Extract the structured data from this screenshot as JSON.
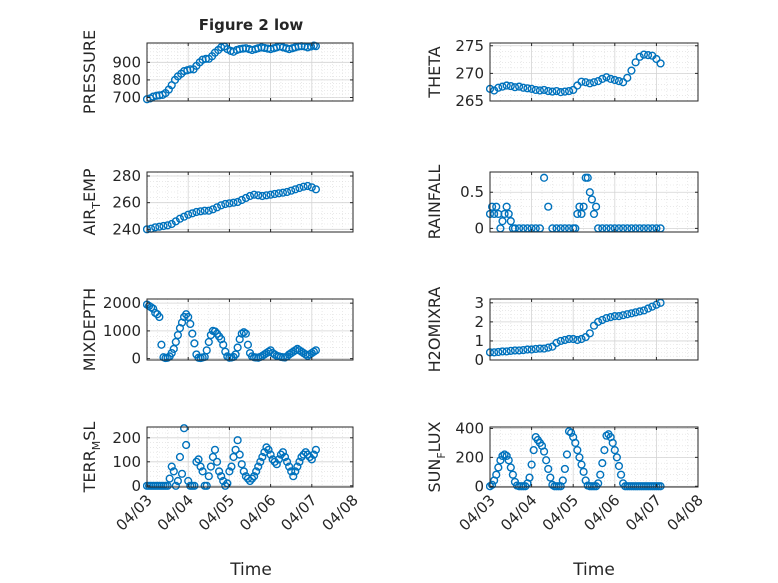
{
  "figure": {
    "title": "Figure 2 low",
    "xlabel": "Time",
    "marker_color": "#0072BD"
  },
  "chart_data": [
    {
      "type": "scatter",
      "ylabel": "PRESSURE",
      "yticks": [
        700,
        800,
        900
      ],
      "ytick_labels": [
        "700",
        "800",
        "900"
      ],
      "ylim": [
        680,
        1010
      ],
      "xlim": [
        "04/03",
        "04/08"
      ],
      "x": [
        0,
        0.08,
        0.15,
        0.23,
        0.3,
        0.38,
        0.45,
        0.53,
        0.6,
        0.68,
        0.75,
        0.83,
        0.9,
        0.98,
        1.05,
        1.13,
        1.2,
        1.28,
        1.35,
        1.43,
        1.5,
        1.58,
        1.65,
        1.73,
        1.8,
        1.88,
        1.95,
        2.03,
        2.1,
        2.18,
        2.25,
        2.33,
        2.4,
        2.48,
        2.55,
        2.63,
        2.7,
        2.78,
        2.85,
        2.93,
        3.0,
        3.08,
        3.15,
        3.23,
        3.3,
        3.38,
        3.45,
        3.53,
        3.6,
        3.68,
        3.75,
        3.83,
        3.9,
        3.98,
        4.05,
        4.1
      ],
      "y": [
        690,
        695,
        705,
        710,
        712,
        715,
        725,
        745,
        770,
        800,
        820,
        835,
        850,
        855,
        860,
        860,
        880,
        900,
        915,
        920,
        920,
        935,
        955,
        970,
        985,
        990,
        975,
        965,
        960,
        970,
        975,
        978,
        980,
        975,
        970,
        975,
        980,
        985,
        982,
        978,
        975,
        980,
        985,
        990,
        985,
        980,
        975,
        980,
        985,
        990,
        992,
        990,
        985,
        990,
        995,
        992
      ],
      "series": [
        {
          "name": "",
          "values": []
        }
      ]
    },
    {
      "type": "scatter",
      "ylabel": "THETA",
      "yticks": [
        265,
        270,
        275
      ],
      "ytick_labels": [
        "265",
        "270",
        "275"
      ],
      "ylim": [
        265,
        275.5
      ],
      "xlim": [
        "04/03",
        "04/08"
      ],
      "x": [
        0,
        0.1,
        0.2,
        0.3,
        0.4,
        0.5,
        0.6,
        0.7,
        0.8,
        0.9,
        1.0,
        1.1,
        1.2,
        1.3,
        1.4,
        1.5,
        1.6,
        1.7,
        1.8,
        1.9,
        2.0,
        2.1,
        2.2,
        2.3,
        2.4,
        2.5,
        2.6,
        2.7,
        2.8,
        2.9,
        3.0,
        3.1,
        3.2,
        3.3,
        3.4,
        3.5,
        3.6,
        3.7,
        3.8,
        3.9,
        4.0,
        4.1
      ],
      "y": [
        267.2,
        266.9,
        267.4,
        267.6,
        267.8,
        267.7,
        267.5,
        267.6,
        267.4,
        267.3,
        267.2,
        267.0,
        266.9,
        267.0,
        266.8,
        266.7,
        266.8,
        266.6,
        266.7,
        266.8,
        267.0,
        267.8,
        268.5,
        268.4,
        268.2,
        268.4,
        268.6,
        269.0,
        269.3,
        269.0,
        268.8,
        268.6,
        268.4,
        269.2,
        270.5,
        272.0,
        273.0,
        273.4,
        273.3,
        273.2,
        272.6,
        271.8
      ]
    },
    {
      "type": "scatter",
      "ylabel": "AIR_TEMP",
      "ylabel_main": "AIR",
      "ylabel_sub": "T",
      "ylabel_rest": "EMP",
      "yticks": [
        240,
        260,
        280
      ],
      "ytick_labels": [
        "240",
        "260",
        "280"
      ],
      "ylim": [
        238,
        283
      ],
      "xlim": [
        "04/03",
        "04/08"
      ],
      "x": [
        0,
        0.1,
        0.2,
        0.3,
        0.4,
        0.5,
        0.6,
        0.7,
        0.8,
        0.9,
        1.0,
        1.1,
        1.2,
        1.3,
        1.4,
        1.5,
        1.6,
        1.7,
        1.8,
        1.9,
        2.0,
        2.1,
        2.2,
        2.3,
        2.4,
        2.5,
        2.6,
        2.7,
        2.8,
        2.9,
        3.0,
        3.1,
        3.2,
        3.3,
        3.4,
        3.5,
        3.6,
        3.7,
        3.8,
        3.9,
        4.0,
        4.1
      ],
      "y": [
        240,
        240.5,
        241.5,
        242,
        242.5,
        243,
        244,
        246,
        248,
        249.5,
        251,
        252,
        253,
        253.5,
        254,
        254,
        255,
        256.5,
        258,
        259,
        259.5,
        260,
        260.5,
        262,
        263.5,
        265,
        266,
        265.5,
        265,
        265.5,
        266,
        266.5,
        267,
        267.5,
        268,
        269,
        270,
        271,
        272,
        272.5,
        271.5,
        270
      ]
    },
    {
      "type": "scatter",
      "ylabel": "RAINFALL",
      "yticks": [
        0,
        0.5
      ],
      "ytick_labels": [
        "0",
        "0.5"
      ],
      "ylim": [
        -0.05,
        0.78
      ],
      "xlim": [
        "04/03",
        "04/08"
      ],
      "x": [
        0,
        0.05,
        0.1,
        0.15,
        0.2,
        0.25,
        0.3,
        0.35,
        0.4,
        0.45,
        0.5,
        0.55,
        0.6,
        0.7,
        0.8,
        0.9,
        1.0,
        1.1,
        1.2,
        1.3,
        1.4,
        1.5,
        1.6,
        1.7,
        1.8,
        1.9,
        2.0,
        2.05,
        2.1,
        2.15,
        2.2,
        2.25,
        2.3,
        2.35,
        2.4,
        2.45,
        2.5,
        2.55,
        2.6,
        2.7,
        2.8,
        2.9,
        3.0,
        3.1,
        3.2,
        3.3,
        3.4,
        3.5,
        3.6,
        3.7,
        3.8,
        3.9,
        4.0,
        4.1
      ],
      "y": [
        0.2,
        0.3,
        0.2,
        0.3,
        0.2,
        0,
        0.1,
        0.2,
        0.3,
        0.2,
        0.1,
        0,
        0,
        0,
        0,
        0,
        0,
        0,
        0,
        0.7,
        0.3,
        0,
        0,
        0,
        0,
        0,
        0,
        0,
        0.2,
        0.3,
        0.2,
        0.3,
        0.7,
        0.7,
        0.5,
        0.4,
        0.2,
        0.3,
        0,
        0,
        0,
        0,
        0,
        0,
        0,
        0,
        0,
        0,
        0,
        0,
        0,
        0,
        0,
        0
      ]
    },
    {
      "type": "scatter",
      "ylabel": "MIXDEPTH",
      "yticks": [
        0,
        1000,
        2000
      ],
      "ytick_labels": [
        "0",
        "1000",
        "2000"
      ],
      "ylim": [
        -50,
        2150
      ],
      "xlim": [
        "04/03",
        "04/08"
      ],
      "x": [
        0,
        0.05,
        0.1,
        0.15,
        0.2,
        0.25,
        0.3,
        0.35,
        0.4,
        0.45,
        0.5,
        0.55,
        0.6,
        0.65,
        0.7,
        0.75,
        0.8,
        0.85,
        0.9,
        0.95,
        1.0,
        1.05,
        1.1,
        1.15,
        1.2,
        1.25,
        1.3,
        1.35,
        1.4,
        1.45,
        1.5,
        1.55,
        1.6,
        1.65,
        1.7,
        1.75,
        1.8,
        1.85,
        1.9,
        1.95,
        2.0,
        2.05,
        2.1,
        2.15,
        2.2,
        2.25,
        2.3,
        2.35,
        2.4,
        2.45,
        2.5,
        2.55,
        2.6,
        2.65,
        2.7,
        2.75,
        2.8,
        2.85,
        2.9,
        2.95,
        3.0,
        3.05,
        3.1,
        3.15,
        3.2,
        3.25,
        3.3,
        3.35,
        3.4,
        3.45,
        3.5,
        3.55,
        3.6,
        3.65,
        3.7,
        3.75,
        3.8,
        3.85,
        3.9,
        3.95,
        4.0,
        4.05,
        4.1
      ],
      "y": [
        1950,
        1900,
        1850,
        1800,
        1650,
        1600,
        1500,
        500,
        50,
        20,
        30,
        80,
        200,
        350,
        600,
        850,
        1100,
        1300,
        1500,
        1600,
        1500,
        1250,
        900,
        550,
        150,
        30,
        20,
        40,
        60,
        300,
        600,
        850,
        1000,
        980,
        900,
        800,
        700,
        500,
        250,
        80,
        30,
        40,
        60,
        150,
        400,
        700,
        900,
        950,
        900,
        500,
        200,
        80,
        50,
        40,
        30,
        60,
        100,
        150,
        200,
        250,
        300,
        200,
        150,
        100,
        80,
        60,
        50,
        40,
        80,
        150,
        200,
        250,
        300,
        350,
        300,
        250,
        200,
        150,
        100,
        150,
        200,
        250,
        300
      ]
    },
    {
      "type": "scatter",
      "ylabel": "H2OMIXRA",
      "yticks": [
        0,
        1,
        2,
        3
      ],
      "ytick_labels": [
        "0",
        "1",
        "2",
        "3"
      ],
      "ylim": [
        0,
        3.2
      ],
      "xlim": [
        "04/03",
        "04/08"
      ],
      "x": [
        0,
        0.1,
        0.2,
        0.3,
        0.4,
        0.5,
        0.6,
        0.7,
        0.8,
        0.9,
        1.0,
        1.1,
        1.2,
        1.3,
        1.4,
        1.5,
        1.6,
        1.7,
        1.8,
        1.9,
        2.0,
        2.1,
        2.2,
        2.3,
        2.4,
        2.5,
        2.6,
        2.7,
        2.8,
        2.9,
        3.0,
        3.1,
        3.2,
        3.3,
        3.4,
        3.5,
        3.6,
        3.7,
        3.8,
        3.9,
        4.0,
        4.1
      ],
      "y": [
        0.4,
        0.4,
        0.42,
        0.45,
        0.45,
        0.48,
        0.5,
        0.5,
        0.52,
        0.55,
        0.55,
        0.58,
        0.6,
        0.6,
        0.65,
        0.7,
        0.9,
        1.0,
        1.05,
        1.1,
        1.1,
        1.05,
        1.1,
        1.2,
        1.4,
        1.8,
        2.0,
        2.1,
        2.2,
        2.25,
        2.3,
        2.3,
        2.35,
        2.4,
        2.45,
        2.5,
        2.55,
        2.6,
        2.7,
        2.8,
        2.9,
        3.0
      ]
    },
    {
      "type": "scatter",
      "ylabel": "TERR_MSL",
      "ylabel_main": "TERR",
      "ylabel_sub": "M",
      "ylabel_rest": "SL",
      "yticks": [
        0,
        100,
        200
      ],
      "ytick_labels": [
        "0",
        "100",
        "200"
      ],
      "ylim": [
        -5,
        245
      ],
      "xlim": [
        "04/03",
        "04/08"
      ],
      "x": [
        0,
        0.05,
        0.1,
        0.15,
        0.2,
        0.25,
        0.3,
        0.35,
        0.4,
        0.45,
        0.5,
        0.55,
        0.6,
        0.65,
        0.7,
        0.75,
        0.8,
        0.85,
        0.9,
        0.95,
        1.0,
        1.05,
        1.1,
        1.15,
        1.2,
        1.25,
        1.3,
        1.35,
        1.4,
        1.45,
        1.5,
        1.55,
        1.6,
        1.65,
        1.7,
        1.75,
        1.8,
        1.85,
        1.9,
        1.95,
        2.0,
        2.05,
        2.1,
        2.15,
        2.2,
        2.25,
        2.3,
        2.35,
        2.4,
        2.45,
        2.5,
        2.55,
        2.6,
        2.65,
        2.7,
        2.75,
        2.8,
        2.85,
        2.9,
        2.95,
        3.0,
        3.05,
        3.1,
        3.15,
        3.2,
        3.25,
        3.3,
        3.35,
        3.4,
        3.45,
        3.5,
        3.55,
        3.6,
        3.65,
        3.7,
        3.75,
        3.8,
        3.85,
        3.9,
        3.95,
        4.0,
        4.05,
        4.1
      ],
      "y": [
        0,
        0,
        0,
        0,
        0,
        0,
        0,
        0,
        0,
        0,
        0,
        30,
        80,
        60,
        0,
        20,
        120,
        50,
        240,
        170,
        20,
        0,
        0,
        0,
        100,
        110,
        80,
        60,
        0,
        0,
        40,
        80,
        120,
        150,
        100,
        60,
        40,
        20,
        0,
        10,
        60,
        80,
        120,
        150,
        190,
        130,
        90,
        60,
        40,
        30,
        20,
        30,
        40,
        60,
        80,
        100,
        120,
        140,
        160,
        150,
        130,
        110,
        100,
        90,
        110,
        130,
        140,
        120,
        100,
        80,
        60,
        40,
        60,
        80,
        100,
        120,
        130,
        140,
        130,
        120,
        110,
        130,
        150
      ]
    },
    {
      "type": "scatter",
      "ylabel": "SUN_FLUX",
      "ylabel_main": "SUN",
      "ylabel_sub": "F",
      "ylabel_rest": "LUX",
      "yticks": [
        0,
        200,
        400
      ],
      "ytick_labels": [
        "0",
        "200",
        "400"
      ],
      "ylim": [
        -5,
        410
      ],
      "xlim": [
        "04/03",
        "04/08"
      ],
      "x": [
        0,
        0.05,
        0.1,
        0.15,
        0.2,
        0.25,
        0.3,
        0.35,
        0.4,
        0.45,
        0.5,
        0.55,
        0.6,
        0.65,
        0.7,
        0.75,
        0.8,
        0.85,
        0.9,
        0.95,
        1.0,
        1.05,
        1.1,
        1.15,
        1.2,
        1.25,
        1.3,
        1.35,
        1.4,
        1.45,
        1.5,
        1.55,
        1.6,
        1.65,
        1.7,
        1.75,
        1.8,
        1.85,
        1.9,
        1.95,
        2.0,
        2.05,
        2.1,
        2.15,
        2.2,
        2.25,
        2.3,
        2.35,
        2.4,
        2.45,
        2.5,
        2.55,
        2.6,
        2.65,
        2.7,
        2.75,
        2.8,
        2.85,
        2.9,
        2.95,
        3.0,
        3.05,
        3.1,
        3.15,
        3.2,
        3.25,
        3.3,
        3.35,
        3.4,
        3.45,
        3.5,
        3.55,
        3.6,
        3.65,
        3.7,
        3.75,
        3.8,
        3.85,
        3.9,
        3.95,
        4.0,
        4.05,
        4.1
      ],
      "y": [
        0,
        10,
        40,
        80,
        130,
        180,
        210,
        220,
        210,
        180,
        130,
        80,
        30,
        5,
        0,
        0,
        0,
        0,
        20,
        60,
        150,
        250,
        340,
        320,
        300,
        280,
        240,
        180,
        120,
        60,
        10,
        0,
        0,
        0,
        0,
        40,
        120,
        220,
        380,
        370,
        340,
        300,
        250,
        200,
        150,
        100,
        40,
        5,
        0,
        0,
        0,
        0,
        20,
        80,
        160,
        250,
        350,
        360,
        340,
        300,
        250,
        200,
        140,
        80,
        20,
        0,
        0,
        0,
        0,
        0,
        0,
        0,
        0,
        0,
        0,
        0,
        0,
        0,
        0,
        0,
        0,
        0,
        0
      ]
    }
  ],
  "x_axis": {
    "ticks": [
      0,
      1,
      2,
      3,
      4,
      5
    ],
    "tick_labels": [
      "04/03",
      "04/04",
      "04/05",
      "04/06",
      "04/07",
      "04/08"
    ],
    "grid": true,
    "minor_grid": true
  }
}
